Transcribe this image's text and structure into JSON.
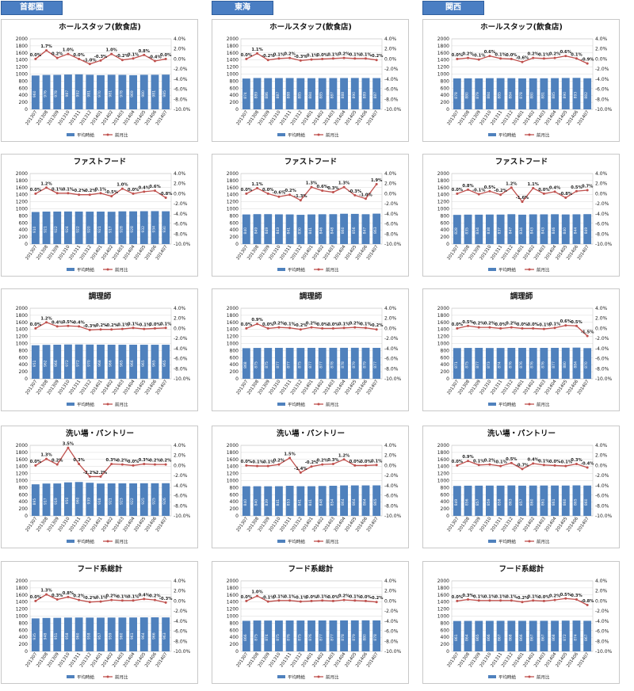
{
  "regions": [
    {
      "name": "首都圏"
    },
    {
      "name": "東海"
    },
    {
      "name": "関西"
    }
  ],
  "colors": {
    "bar": "#4f81bd",
    "line": "#c0504d",
    "tab": "#4a7ec3"
  },
  "legend": {
    "bar": "平均時給",
    "line": "前月比"
  },
  "axes": {
    "left_ticks": [
      "0",
      "200",
      "400",
      "600",
      "800",
      "1000",
      "1200",
      "1400",
      "1600",
      "1800",
      "2000"
    ],
    "right_ticks": [
      "-10.0%",
      "-8.0%",
      "-6.0%",
      "-4.0%",
      "-2.0%",
      "0.0%",
      "2.0%",
      "4.0%"
    ],
    "ylim_left": [
      0,
      2000
    ],
    "ylim_right": [
      -10,
      4
    ]
  },
  "chart_data": [
    {
      "type": "bar+line",
      "region": "首都圏",
      "title": "ホールスタッフ(飲食店)",
      "categories": [
        "201307",
        "201308",
        "201309",
        "201310",
        "201311",
        "201312",
        "201401",
        "201402",
        "201403",
        "201404",
        "201405",
        "201406",
        "201407"
      ],
      "values": [
        960,
        976,
        978,
        987,
        992,
        981,
        970,
        981,
        978,
        969,
        980,
        981,
        985
      ],
      "pct": [
        0.0,
        1.7,
        0.2,
        1.0,
        0.0,
        -1.0,
        -0.3,
        1.0,
        -0.2,
        0.1,
        0.8,
        -0.4,
        0.0
      ],
      "pct_labels": [
        "0.0%",
        "1.7%",
        "0.2%",
        "1.0%",
        "0.0%",
        "-1.0%",
        "-0.3%",
        "1.0%",
        "-0.2%",
        "0.1%",
        "0.8%",
        "-0.4%",
        "0.0%"
      ]
    },
    {
      "type": "bar+line",
      "region": "東海",
      "title": "ホールスタッフ(飲食店)",
      "categories": [
        "201307",
        "201308",
        "201309",
        "201310",
        "201311",
        "201312",
        "201401",
        "201402",
        "201403",
        "201404",
        "201405",
        "201406",
        "201407"
      ],
      "values": [
        874,
        889,
        886,
        887,
        888,
        885,
        884,
        885,
        887,
        888,
        890,
        889,
        887
      ],
      "pct": [
        0.0,
        1.1,
        -0.2,
        0.1,
        0.2,
        -0.3,
        -0.1,
        0.0,
        0.1,
        0.2,
        0.1,
        0.1,
        -0.2
      ],
      "pct_labels": [
        "0.0%",
        "1.1%",
        "-0.2%",
        "0.1%",
        "0.2%",
        "-0.3%",
        "-0.1%",
        "0.0%",
        "0.1%",
        "0.2%",
        "0.1%",
        "0.1%",
        "-0.2%"
      ]
    },
    {
      "type": "bar+line",
      "region": "関西",
      "title": "ホールスタッフ(飲食店)",
      "categories": [
        "201307",
        "201308",
        "201309",
        "201310",
        "201311",
        "201312",
        "201401",
        "201402",
        "201403",
        "201404",
        "201405",
        "201406",
        "201407"
      ],
      "values": [
        878,
        880,
        879,
        884,
        885,
        884,
        878,
        880,
        881,
        885,
        890,
        893,
        882
      ],
      "pct": [
        0.0,
        0.2,
        -0.1,
        0.6,
        0.1,
        0.0,
        -0.6,
        0.2,
        0.1,
        0.2,
        0.6,
        0.1,
        -0.9
      ],
      "pct_labels": [
        "0.0%",
        "0.2%",
        "-0.1%",
        "0.6%",
        "0.1%",
        "0.0%",
        "-0.6%",
        "0.2%",
        "0.1%",
        "0.2%",
        "0.6%",
        "0.1%",
        "-0.9%"
      ]
    },
    {
      "type": "bar+line",
      "region": "首都圏",
      "title": "ファストフード",
      "categories": [
        "201307",
        "201308",
        "201309",
        "201310",
        "201311",
        "201312",
        "201401",
        "201402",
        "201403",
        "201404",
        "201405",
        "201406",
        "201407"
      ],
      "values": [
        910,
        921,
        922,
        924,
        922,
        920,
        921,
        917,
        928,
        928,
        932,
        934,
        930
      ],
      "pct": [
        0.0,
        1.2,
        0.1,
        0.1,
        -0.2,
        -0.2,
        0.1,
        -0.5,
        1.0,
        0.0,
        0.4,
        0.6,
        -0.8
      ],
      "pct_labels": [
        "0.0%",
        "1.2%",
        "0.1%",
        "0.1%",
        "-0.2%",
        "-0.2%",
        "0.1%",
        "-0.5%",
        "1.0%",
        "0.0%",
        "0.4%",
        "0.6%",
        "-0.8%"
      ]
    },
    {
      "type": "bar+line",
      "region": "東海",
      "title": "ファストフード",
      "categories": [
        "201307",
        "201308",
        "201309",
        "201310",
        "201311",
        "201312",
        "201401",
        "201402",
        "201403",
        "201404",
        "201405",
        "201406",
        "201407"
      ],
      "values": [
        840,
        849,
        849,
        843,
        841,
        830,
        841,
        846,
        848,
        860,
        856,
        847,
        863
      ],
      "pct": [
        0.0,
        1.1,
        0.0,
        -0.6,
        -0.2,
        -1.3,
        1.3,
        0.6,
        0.3,
        1.3,
        -0.3,
        -1.0,
        1.9
      ],
      "pct_labels": [
        "0.0%",
        "1.1%",
        "0.0%",
        "-0.6%",
        "-0.2%",
        "-1.3%",
        "1.3%",
        "0.6%",
        "0.3%",
        "1.3%",
        "-0.3%",
        "-1.0%",
        "1.9%"
      ]
    },
    {
      "type": "bar+line",
      "region": "関西",
      "title": "ファストフード",
      "categories": [
        "201307",
        "201308",
        "201309",
        "201310",
        "201311",
        "201312",
        "201401",
        "201402",
        "201403",
        "201404",
        "201405",
        "201406",
        "201407"
      ],
      "values": [
        828,
        835,
        834,
        838,
        837,
        847,
        834,
        843,
        843,
        846,
        840,
        844,
        849
      ],
      "pct": [
        0.0,
        0.8,
        -0.1,
        0.5,
        -0.2,
        1.2,
        -1.6,
        1.1,
        0.0,
        0.4,
        -0.8,
        0.5,
        0.7
      ],
      "pct_labels": [
        "0.0%",
        "0.8%",
        "-0.1%",
        "0.5%",
        "-0.2%",
        "1.2%",
        "-1.6%",
        "1.1%",
        "0.0%",
        "0.4%",
        "-0.8%",
        "0.5%",
        "0.7%"
      ]
    },
    {
      "type": "bar+line",
      "region": "首都圏",
      "title": "調理師",
      "categories": [
        "201307",
        "201308",
        "201309",
        "201310",
        "201311",
        "201312",
        "201401",
        "201402",
        "201403",
        "201404",
        "201405",
        "201406",
        "201407"
      ],
      "values": [
        951,
        962,
        966,
        972,
        972,
        970,
        968,
        966,
        965,
        966,
        965,
        965,
        965
      ],
      "pct": [
        0.0,
        1.2,
        0.4,
        0.5,
        0.4,
        -0.3,
        -0.2,
        -0.2,
        -0.1,
        0.1,
        -0.1,
        0.0,
        0.1
      ],
      "pct_labels": [
        "0.0%",
        "1.2%",
        "0.4%",
        "0.5%",
        "0.4%",
        "-0.3%",
        "-0.2%",
        "-0.2%",
        "-0.1%",
        "0.1%",
        "-0.1%",
        "0.0%",
        "0.1%"
      ]
    },
    {
      "type": "bar+line",
      "region": "東海",
      "title": "調理師",
      "categories": [
        "201307",
        "201308",
        "201309",
        "201310",
        "201311",
        "201312",
        "201401",
        "201402",
        "201403",
        "201404",
        "201405",
        "201406",
        "201407"
      ],
      "values": [
        868,
        875,
        875,
        877,
        877,
        875,
        877,
        877,
        878,
        878,
        879,
        879,
        877
      ],
      "pct": [
        0.0,
        0.9,
        0.0,
        0.2,
        0.1,
        -0.2,
        0.2,
        0.0,
        0.0,
        0.1,
        0.2,
        0.1,
        -0.2
      ],
      "pct_labels": [
        "0.0%",
        "0.9%",
        "0.0%",
        "0.2%",
        "0.1%",
        "-0.2%",
        "0.2%",
        "0.0%",
        "0.0%",
        "0.1%",
        "0.2%",
        "0.1%",
        "-0.2%"
      ]
    },
    {
      "type": "bar+line",
      "region": "関西",
      "title": "調理師",
      "categories": [
        "201307",
        "201308",
        "201309",
        "201310",
        "201311",
        "201312",
        "201401",
        "201402",
        "201403",
        "201404",
        "201405",
        "201406",
        "201407"
      ],
      "values": [
        871,
        875,
        877,
        873,
        874,
        876,
        876,
        876,
        876,
        877,
        880,
        884,
        870
      ],
      "pct": [
        0.0,
        0.5,
        0.2,
        0.2,
        0.0,
        0.2,
        0.0,
        0.0,
        -0.1,
        0.1,
        0.6,
        0.5,
        -1.5
      ],
      "pct_labels": [
        "0.0%",
        "0.5%",
        "0.2%",
        "0.2%",
        "0.0%",
        "0.2%",
        "0.0%",
        "0.0%",
        "-0.1%",
        "0.1%",
        "0.6%",
        "0.5%",
        "-1.5%"
      ]
    },
    {
      "type": "bar+line",
      "region": "首都圏",
      "title": "洗い場・パントリー",
      "categories": [
        "201307",
        "201308",
        "201309",
        "201310",
        "201311",
        "201312",
        "201401",
        "201402",
        "201403",
        "201404",
        "201405",
        "201406",
        "201407"
      ],
      "values": [
        895,
        917,
        919,
        950,
        960,
        939,
        918,
        921,
        923,
        922,
        925,
        925,
        926
      ],
      "pct": [
        0.0,
        1.3,
        0.2,
        3.5,
        0.3,
        -2.2,
        -2.2,
        0.3,
        0.2,
        0.0,
        0.3,
        0.2,
        0.2
      ],
      "pct_labels": [
        "0.0%",
        "1.3%",
        "0.2%",
        "3.5%",
        "0.3%",
        "-2.2%",
        "-2.2%",
        "0.3%",
        "0.2%",
        "0.0%",
        "0.3%",
        "0.2%",
        "0.2%"
      ]
    },
    {
      "type": "bar+line",
      "region": "東海",
      "title": "洗い場・パントリー",
      "categories": [
        "201307",
        "201308",
        "201309",
        "201310",
        "201311",
        "201312",
        "201401",
        "201402",
        "201403",
        "201404",
        "201405",
        "201406",
        "201407"
      ],
      "values": [
        840,
        840,
        839,
        841,
        853,
        841,
        841,
        848,
        854,
        864,
        864,
        864,
        865
      ],
      "pct": [
        0.0,
        -0.1,
        -0.1,
        0.2,
        1.5,
        -1.4,
        -0.2,
        0.2,
        0.3,
        1.2,
        0.0,
        0.0,
        0.1
      ],
      "pct_labels": [
        "0.0%",
        "-0.1%",
        "-0.1%",
        "0.2%",
        "1.5%",
        "-1.4%",
        "-0.2%",
        "0.2%",
        "0.3%",
        "1.2%",
        "0.0%",
        "0.0%",
        "0.1%"
      ]
    },
    {
      "type": "bar+line",
      "region": "関西",
      "title": "洗い場・パントリー",
      "categories": [
        "201307",
        "201308",
        "201309",
        "201310",
        "201311",
        "201312",
        "201401",
        "201402",
        "201403",
        "201404",
        "201405",
        "201406",
        "201407"
      ],
      "values": [
        849,
        856,
        857,
        859,
        858,
        863,
        857,
        860,
        861,
        861,
        860,
        865,
        860
      ],
      "pct": [
        0.0,
        0.9,
        0.1,
        0.2,
        -0.1,
        0.5,
        -0.7,
        0.4,
        0.1,
        0.0,
        -0.1,
        0.3,
        -0.4
      ],
      "pct_labels": [
        "0.0%",
        "0.9%",
        "0.1%",
        "0.2%",
        "-0.1%",
        "0.5%",
        "-0.7%",
        "0.4%",
        "0.1%",
        "0.0%",
        "-0.1%",
        "0.3%",
        "-0.4%"
      ]
    },
    {
      "type": "bar+line",
      "region": "首都圏",
      "title": "フード系総計",
      "categories": [
        "201307",
        "201308",
        "201309",
        "201310",
        "201311",
        "201312",
        "201401",
        "201402",
        "201403",
        "201404",
        "201405",
        "201406",
        "201407"
      ],
      "values": [
        935,
        948,
        951,
        958,
        960,
        958,
        957,
        959,
        960,
        961,
        964,
        966,
        963
      ],
      "pct": [
        0.0,
        1.3,
        0.3,
        0.8,
        0.2,
        -0.2,
        -0.1,
        0.2,
        0.1,
        0.1,
        0.4,
        0.2,
        -0.3
      ],
      "pct_labels": [
        "0.0%",
        "1.3%",
        "0.3%",
        "0.8%",
        "0.2%",
        "-0.2%",
        "-0.1%",
        "0.2%",
        "0.1%",
        "0.1%",
        "0.4%",
        "0.2%",
        "-0.3%"
      ]
    },
    {
      "type": "bar+line",
      "region": "東海",
      "title": "フード系総計",
      "categories": [
        "201307",
        "201308",
        "201309",
        "201310",
        "201311",
        "201312",
        "201401",
        "201402",
        "201403",
        "201404",
        "201405",
        "201406",
        "201407"
      ],
      "values": [
        866,
        875,
        874,
        875,
        876,
        875,
        876,
        877,
        877,
        878,
        879,
        880,
        878
      ],
      "pct": [
        0.0,
        1.0,
        -0.1,
        0.1,
        0.1,
        -0.1,
        0.0,
        0.1,
        0.0,
        0.2,
        0.1,
        0.0,
        -0.2
      ],
      "pct_labels": [
        "0.0%",
        "1.0%",
        "-0.1%",
        "0.1%",
        "0.1%",
        "-0.1%",
        "0.0%",
        "0.1%",
        "0.0%",
        "0.2%",
        "0.1%",
        "0.0%",
        "-0.2%"
      ]
    },
    {
      "type": "bar+line",
      "region": "関西",
      "title": "フード系総計",
      "categories": [
        "201307",
        "201308",
        "201309",
        "201310",
        "201311",
        "201312",
        "201401",
        "201402",
        "201403",
        "201404",
        "201405",
        "201406",
        "201407"
      ],
      "values": [
        861,
        864,
        865,
        866,
        867,
        868,
        866,
        867,
        867,
        868,
        872,
        874,
        867
      ],
      "pct": [
        0.0,
        0.3,
        0.1,
        0.1,
        0.1,
        0.1,
        -0.2,
        0.1,
        0.0,
        0.2,
        0.5,
        0.3,
        -0.8
      ],
      "pct_labels": [
        "0.0%",
        "0.3%",
        "0.1%",
        "0.1%",
        "0.1%",
        "0.1%",
        "-0.2%",
        "0.1%",
        "0.0%",
        "0.2%",
        "0.5%",
        "0.3%",
        "-0.8%"
      ]
    }
  ]
}
